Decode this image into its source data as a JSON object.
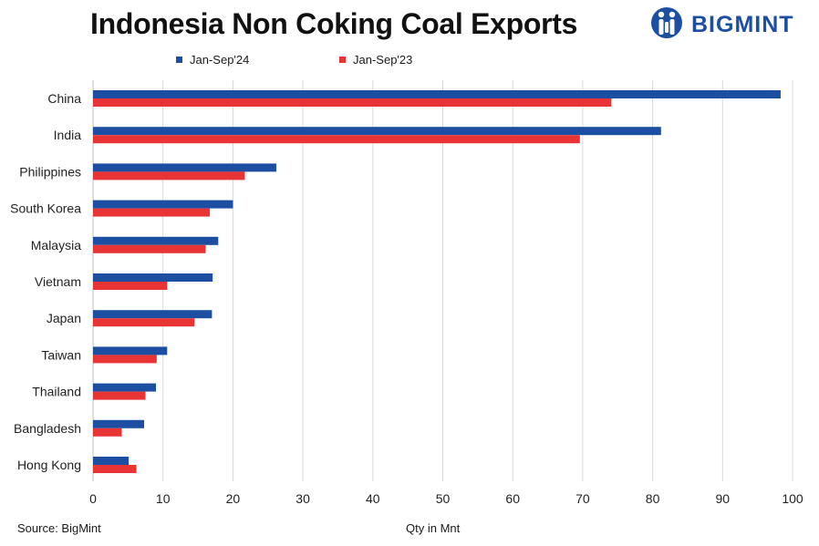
{
  "title": "Indonesia Non Coking Coal Exports",
  "brand": {
    "name": "BIGMINT",
    "color": "#1c4fa1"
  },
  "legend": [
    {
      "label": "Jan-Sep'24",
      "color": "#1c4fa1"
    },
    {
      "label": "Jan-Sep'23",
      "color": "#e83434"
    }
  ],
  "footer": {
    "source": "Source: BigMint",
    "xlabel": "Qty in Mnt"
  },
  "chart_data": {
    "type": "bar",
    "orientation": "horizontal",
    "title": "Indonesia Non Coking Coal Exports",
    "xlabel": "Qty in Mnt",
    "ylabel": "",
    "categories": [
      "China",
      "India",
      "Philippines",
      "South Korea",
      "Malaysia",
      "Vietnam",
      "Japan",
      "Taiwan",
      "Thailand",
      "Bangladesh",
      "Hong Kong"
    ],
    "series": [
      {
        "name": "Jan-Sep'24",
        "color": "#1c4fa1",
        "values": [
          98.3,
          81.2,
          26.2,
          20.0,
          17.9,
          17.1,
          17.0,
          10.6,
          9.0,
          7.3,
          5.1
        ]
      },
      {
        "name": "Jan-Sep'23",
        "color": "#e83434",
        "values": [
          74.1,
          69.6,
          21.7,
          16.7,
          16.1,
          10.6,
          14.5,
          9.1,
          7.5,
          4.1,
          6.2
        ]
      }
    ],
    "xlim": [
      0,
      100
    ],
    "xticks": [
      0,
      10,
      20,
      30,
      40,
      50,
      60,
      70,
      80,
      90,
      100
    ],
    "grid": "vertical",
    "legend_position": "top"
  }
}
